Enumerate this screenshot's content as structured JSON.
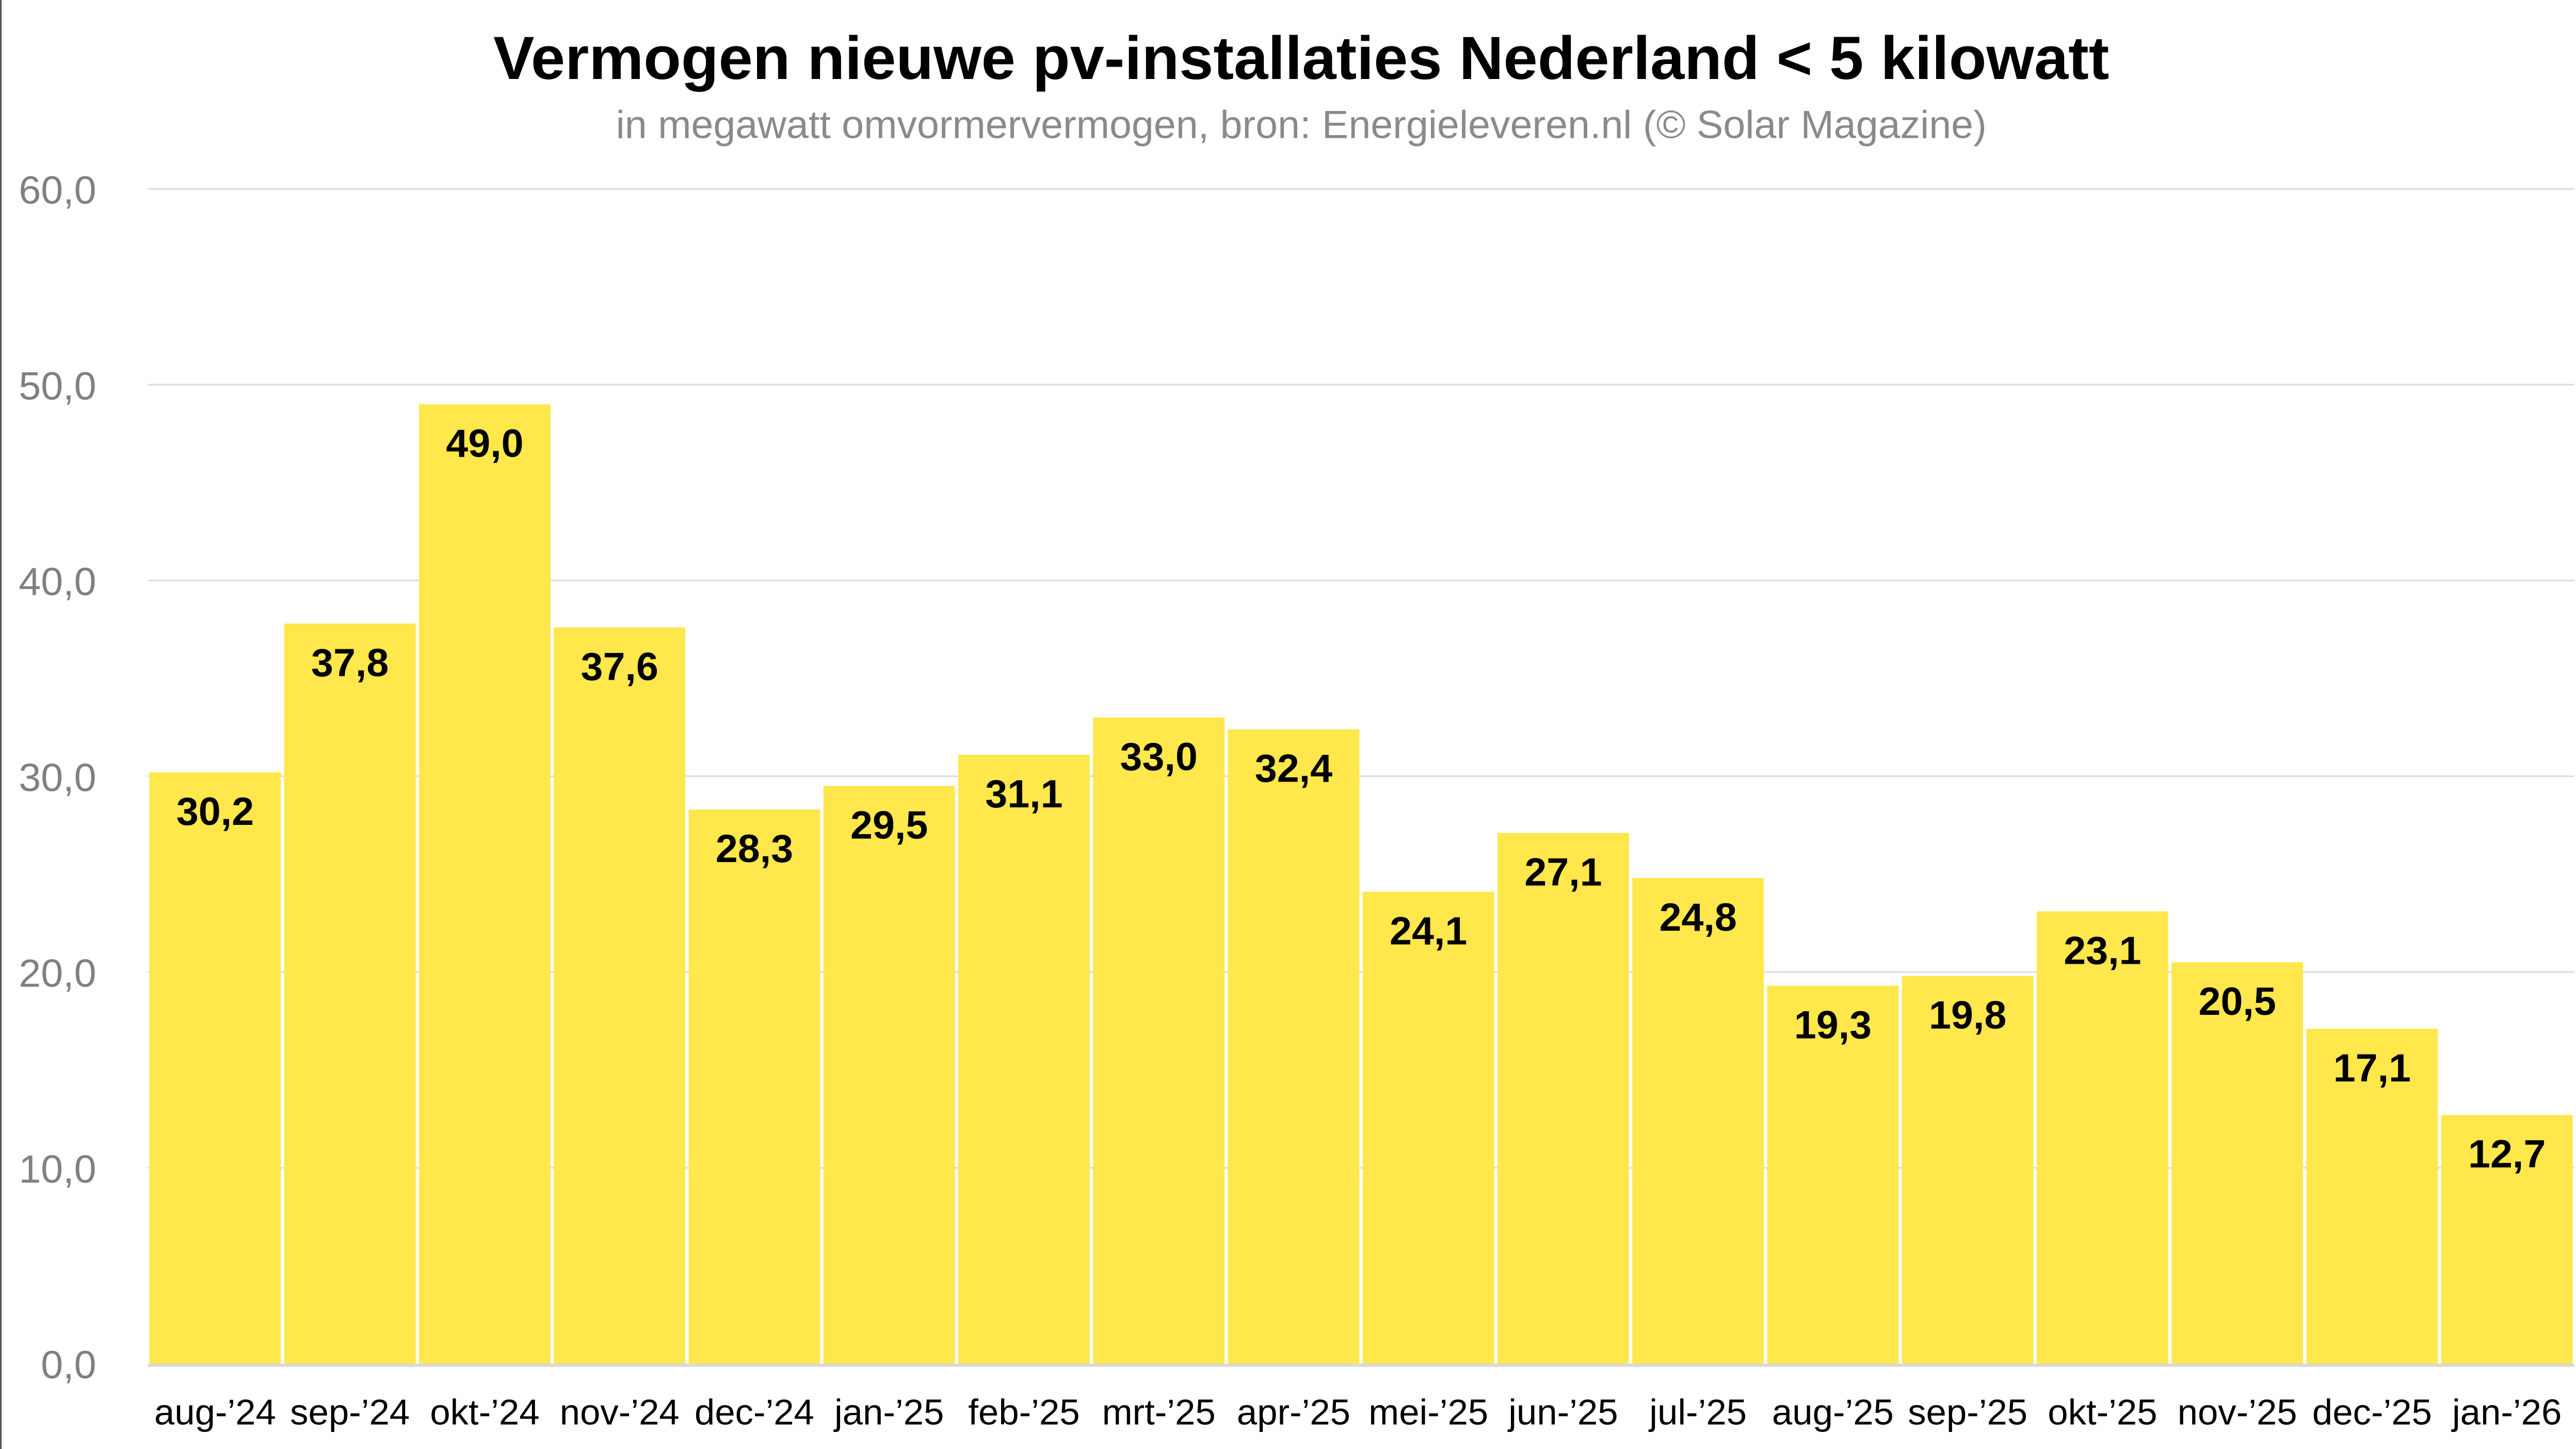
{
  "chart_data": {
    "type": "bar",
    "title": "Vermogen nieuwe pv-installaties Nederland < 5 kilowatt",
    "subtitle": "in megawatt omvormervermogen, bron: Energieleveren.nl (© Solar Magazine)",
    "categories": [
      "aug-’24",
      "sep-’24",
      "okt-’24",
      "nov-’24",
      "dec-’24",
      "jan-’25",
      "feb-’25",
      "mrt-’25",
      "apr-’25",
      "mei-’25",
      "jun-’25",
      "jul-’25",
      "aug-’25",
      "sep-’25",
      "okt-’25",
      "nov-’25",
      "dec-’25",
      "jan-’26"
    ],
    "values": [
      30.2,
      37.8,
      49.0,
      37.6,
      28.3,
      29.5,
      31.1,
      33.0,
      32.4,
      24.1,
      27.1,
      24.8,
      19.3,
      19.8,
      23.1,
      20.5,
      17.1,
      12.7
    ],
    "value_labels": [
      "30,2",
      "37,8",
      "49,0",
      "37,6",
      "28,3",
      "29,5",
      "31,1",
      "33,0",
      "32,4",
      "24,1",
      "27,1",
      "24,8",
      "19,3",
      "19,8",
      "23,1",
      "20,5",
      "17,1",
      "12,7"
    ],
    "yticks": [
      0,
      10,
      20,
      30,
      40,
      50,
      60
    ],
    "ytick_labels": [
      "0,0",
      "10,0",
      "20,0",
      "30,0",
      "40,0",
      "50,0",
      "60,0"
    ],
    "ylim": [
      0,
      60
    ],
    "xlabel": "",
    "ylabel": "",
    "grid": true,
    "colors": {
      "bar": "#FFE74C",
      "grid": "#DDDDDD",
      "tick": "#808080",
      "subtitle": "#8A8A8A"
    }
  }
}
